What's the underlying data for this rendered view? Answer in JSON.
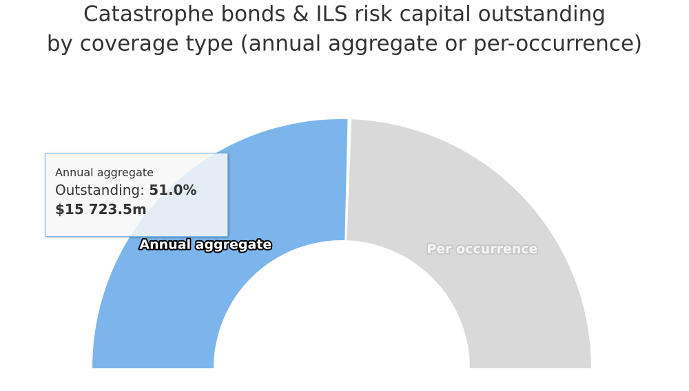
{
  "chart_data": {
    "type": "pie",
    "title": "Catastrophe bonds & ILS risk capital outstanding by coverage type (annual aggregate or per-occurrence)",
    "series_name": "Outstanding",
    "categories": [
      "Annual aggregate",
      "Per occurrence"
    ],
    "values": [
      51.0,
      49.0
    ],
    "value_labels": [
      "51.0%",
      "49.0%"
    ],
    "colors": [
      "#7cb5ec",
      "#d9d9d9"
    ],
    "semicircle": true,
    "tooltip": {
      "point": 0,
      "amount_label": "$15 723.5m"
    }
  }
}
